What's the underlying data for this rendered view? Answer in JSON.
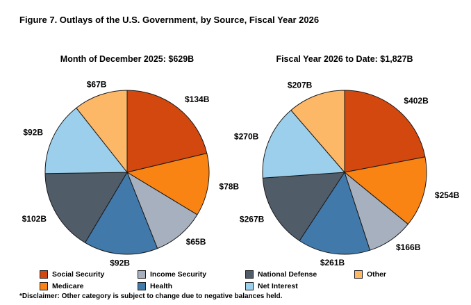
{
  "figure_title": "Figure 7. Outlays of the U.S. Government, by Source, Fiscal Year 2026",
  "footnote": "*Disclaimer: Other category is subject to change due to negative balances held.",
  "colors": {
    "social_security": "#D2480E",
    "medicare": "#F98414",
    "income_security": "#A6B0BE",
    "health": "#4179AB",
    "national_defense": "#515C69",
    "net_interest": "#9CCFEC",
    "other": "#FCB767",
    "wedge_outline": "#1A1A1A",
    "text": "#000000",
    "background": "#FFFFFF"
  },
  "chart_data": [
    {
      "type": "pie",
      "title": "Month of December 2025: $629B",
      "total_label": "$629B",
      "start_angle_deg": 0,
      "direction": "clockwise",
      "labels_position": "outside",
      "categories": [
        "Social Security",
        "Medicare",
        "Income Security",
        "Health",
        "National Defense",
        "Net Interest",
        "Other"
      ],
      "values": [
        134,
        78,
        65,
        92,
        102,
        92,
        67
      ],
      "labels": [
        "$134B",
        "$78B",
        "$65B",
        "$92B",
        "$102B",
        "$92B",
        "$67B"
      ],
      "colors": [
        "#D2480E",
        "#F98414",
        "#A6B0BE",
        "#4179AB",
        "#515C69",
        "#9CCFEC",
        "#FCB767"
      ]
    },
    {
      "type": "pie",
      "title": "Fiscal Year 2026 to Date: $1,827B",
      "total_label": "$1,827B",
      "start_angle_deg": 0,
      "direction": "clockwise",
      "labels_position": "outside",
      "categories": [
        "Social Security",
        "Medicare",
        "Income Security",
        "Health",
        "National Defense",
        "Net Interest",
        "Other"
      ],
      "values": [
        402,
        254,
        166,
        261,
        267,
        270,
        207
      ],
      "labels": [
        "$402B",
        "$254B",
        "$166B",
        "$261B",
        "$267B",
        "$270B",
        "$207B"
      ],
      "colors": [
        "#D2480E",
        "#F98414",
        "#A6B0BE",
        "#4179AB",
        "#515C69",
        "#9CCFEC",
        "#FCB767"
      ]
    }
  ],
  "legend": {
    "position": "bottom",
    "order_row_major": [
      "Social Security",
      "Income Security",
      "National Defense",
      "Other",
      "Medicare",
      "Health",
      "Net Interest"
    ],
    "swatch_colors": {
      "Social Security": "#D2480E",
      "Medicare": "#F98414",
      "Income Security": "#A6B0BE",
      "Health": "#4179AB",
      "National Defense": "#515C69",
      "Net Interest": "#9CCFEC",
      "Other": "#FCB767"
    }
  }
}
